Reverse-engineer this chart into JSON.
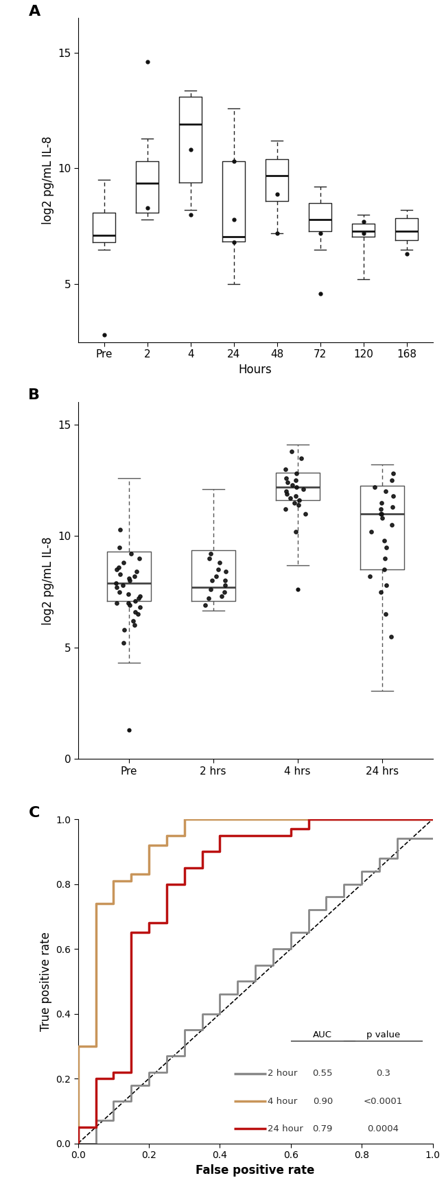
{
  "panel_A": {
    "label": "A",
    "ylabel": "log2 pg/mL IL-8",
    "xlabel": "Hours",
    "xlim": [
      -0.6,
      7.6
    ],
    "ylim": [
      2.5,
      16.5
    ],
    "yticks": [
      5,
      10,
      15
    ],
    "xtick_labels": [
      "Pre",
      "2",
      "4",
      "24",
      "48",
      "72",
      "120",
      "168"
    ],
    "boxes": [
      {
        "med": 7.1,
        "q1": 6.8,
        "q3": 8.1,
        "whishi": 9.5,
        "whislo": 6.5,
        "fliers": [
          2.8
        ]
      },
      {
        "med": 9.35,
        "q1": 8.1,
        "q3": 10.3,
        "whishi": 11.3,
        "whislo": 7.8,
        "fliers": [
          14.6,
          8.3
        ]
      },
      {
        "med": 11.9,
        "q1": 9.4,
        "q3": 13.1,
        "whishi": 13.35,
        "whislo": 8.2,
        "fliers": [
          10.8,
          8.0
        ]
      },
      {
        "med": 7.05,
        "q1": 6.85,
        "q3": 10.3,
        "whishi": 12.6,
        "whislo": 5.0,
        "fliers": [
          10.3,
          7.8,
          6.8
        ]
      },
      {
        "med": 9.7,
        "q1": 8.6,
        "q3": 10.4,
        "whishi": 11.2,
        "whislo": 7.2,
        "fliers": [
          7.2,
          8.9
        ]
      },
      {
        "med": 7.8,
        "q1": 7.3,
        "q3": 8.5,
        "whishi": 9.2,
        "whislo": 6.5,
        "fliers": [
          4.6,
          7.2
        ]
      },
      {
        "med": 7.3,
        "q1": 7.05,
        "q3": 7.6,
        "whishi": 8.0,
        "whislo": 5.2,
        "fliers": [
          7.7,
          7.2
        ]
      },
      {
        "med": 7.3,
        "q1": 6.9,
        "q3": 7.85,
        "whishi": 8.2,
        "whislo": 6.5,
        "fliers": [
          6.3
        ]
      }
    ]
  },
  "panel_B": {
    "label": "B",
    "ylabel": "log2 pg/mL IL-8",
    "xlabel": "",
    "xlim": [
      -0.6,
      3.6
    ],
    "ylim": [
      0,
      16
    ],
    "yticks": [
      0,
      5,
      10,
      15
    ],
    "xtick_labels": [
      "Pre",
      "2 hrs",
      "4 hrs",
      "24 hrs"
    ],
    "boxes": [
      {
        "med": 7.9,
        "q1": 7.1,
        "q3": 9.3,
        "whishi": 12.6,
        "whislo": 4.3,
        "fliers": [
          1.3
        ]
      },
      {
        "med": 7.7,
        "q1": 7.1,
        "q3": 9.35,
        "whishi": 12.1,
        "whislo": 6.65,
        "fliers": []
      },
      {
        "med": 12.2,
        "q1": 11.6,
        "q3": 12.85,
        "whishi": 14.1,
        "whislo": 8.7,
        "fliers": [
          7.6
        ]
      },
      {
        "med": 11.0,
        "q1": 8.5,
        "q3": 12.25,
        "whishi": 13.2,
        "whislo": 3.05,
        "fliers": []
      }
    ],
    "jitter_points": [
      [
        10.3,
        8.2,
        7.8,
        8.0,
        8.5,
        9.0,
        7.2,
        7.0,
        6.8,
        7.5,
        8.8,
        9.2,
        7.3,
        6.5,
        7.9,
        8.1,
        6.9,
        7.4,
        7.1,
        8.3,
        6.6,
        7.7,
        9.5,
        8.6,
        5.8,
        6.2,
        7.0,
        8.4,
        5.2,
        6.0
      ],
      [
        8.5,
        7.2,
        9.0,
        7.8,
        8.2,
        7.5,
        8.8,
        7.3,
        9.2,
        8.0,
        7.6,
        8.4,
        6.9,
        8.0
      ],
      [
        12.5,
        11.8,
        12.2,
        11.5,
        12.8,
        13.0,
        11.9,
        12.1,
        13.5,
        11.2,
        12.3,
        11.7,
        12.6,
        11.4,
        10.2,
        12.0,
        11.6,
        11.0,
        12.4,
        13.8
      ],
      [
        12.0,
        11.5,
        10.8,
        11.2,
        12.5,
        9.0,
        8.5,
        7.5,
        11.0,
        10.5,
        12.2,
        11.8,
        10.2,
        9.8,
        8.2,
        7.8,
        6.5,
        5.5,
        12.8,
        11.0,
        9.5,
        11.3
      ]
    ]
  },
  "panel_C": {
    "label": "C",
    "xlabel": "False positive rate",
    "ylabel": "True positive rate",
    "xlim": [
      0,
      1
    ],
    "ylim": [
      0,
      1
    ],
    "xticks": [
      0.0,
      0.2,
      0.4,
      0.6,
      0.8,
      1.0
    ],
    "yticks": [
      0.0,
      0.2,
      0.4,
      0.6,
      0.8,
      1.0
    ],
    "curves": {
      "2hour": {
        "color": "#888888",
        "linewidth": 2.0,
        "label": "2 hour",
        "auc": "0.55",
        "pvalue": "0.3",
        "fpr": [
          0.0,
          0.05,
          0.05,
          0.1,
          0.1,
          0.15,
          0.15,
          0.2,
          0.2,
          0.25,
          0.25,
          0.3,
          0.3,
          0.35,
          0.35,
          0.4,
          0.4,
          0.45,
          0.45,
          0.5,
          0.5,
          0.55,
          0.55,
          0.6,
          0.6,
          0.65,
          0.65,
          0.7,
          0.7,
          0.75,
          0.75,
          0.8,
          0.8,
          0.85,
          0.85,
          0.9,
          0.9,
          1.0
        ],
        "tpr": [
          0.0,
          0.0,
          0.07,
          0.07,
          0.13,
          0.13,
          0.18,
          0.18,
          0.22,
          0.22,
          0.27,
          0.27,
          0.35,
          0.35,
          0.4,
          0.4,
          0.46,
          0.46,
          0.5,
          0.5,
          0.55,
          0.55,
          0.6,
          0.6,
          0.65,
          0.65,
          0.72,
          0.72,
          0.76,
          0.76,
          0.8,
          0.8,
          0.84,
          0.84,
          0.88,
          0.88,
          0.94,
          0.94
        ]
      },
      "4hour": {
        "color": "#C8955A",
        "linewidth": 2.5,
        "label": "4 hour",
        "auc": "0.90",
        "pvalue": "<0.0001",
        "fpr": [
          0.0,
          0.0,
          0.05,
          0.05,
          0.1,
          0.1,
          0.15,
          0.15,
          0.2,
          0.2,
          0.25,
          0.25,
          0.3,
          0.3,
          0.6,
          0.6,
          1.0
        ],
        "tpr": [
          0.0,
          0.3,
          0.3,
          0.74,
          0.74,
          0.81,
          0.81,
          0.83,
          0.83,
          0.92,
          0.92,
          0.95,
          0.95,
          1.0,
          1.0,
          1.0,
          1.0
        ]
      },
      "24hour": {
        "color": "#BB1111",
        "linewidth": 2.5,
        "label": "24 hour",
        "auc": "0.79",
        "pvalue": "0.0004",
        "fpr": [
          0.0,
          0.0,
          0.05,
          0.05,
          0.1,
          0.1,
          0.15,
          0.15,
          0.2,
          0.2,
          0.25,
          0.25,
          0.3,
          0.3,
          0.35,
          0.35,
          0.4,
          0.4,
          0.6,
          0.6,
          0.65,
          0.65,
          0.95,
          0.95,
          1.0
        ],
        "tpr": [
          0.0,
          0.05,
          0.05,
          0.2,
          0.2,
          0.22,
          0.22,
          0.65,
          0.65,
          0.68,
          0.68,
          0.8,
          0.8,
          0.85,
          0.85,
          0.9,
          0.9,
          0.95,
          0.95,
          0.97,
          0.97,
          1.0,
          1.0,
          1.0,
          1.0
        ]
      }
    }
  },
  "bg_color": "#ffffff"
}
